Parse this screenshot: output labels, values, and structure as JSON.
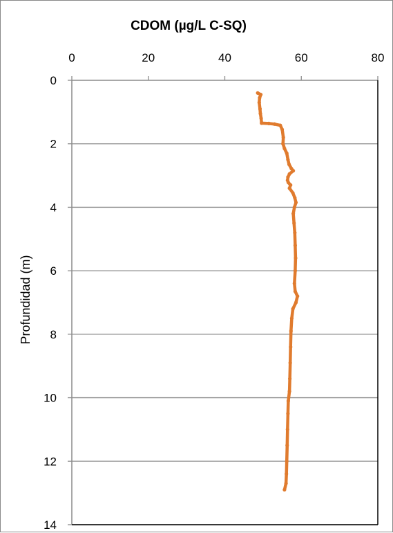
{
  "chart_data": {
    "type": "line",
    "title": "",
    "xlabel": "CDOM (µg/L C-SQ)",
    "ylabel": "Profundidad (m)",
    "xlim": [
      0,
      80
    ],
    "ylim": [
      0,
      14
    ],
    "y_inverted": true,
    "x_axis_position": "top",
    "xticks": [
      0,
      20,
      40,
      60,
      80
    ],
    "yticks": [
      0,
      2,
      4,
      6,
      8,
      10,
      12,
      14
    ],
    "grid": "horizontal",
    "legend": "none",
    "series": [
      {
        "color": "#e07b2e",
        "points": [
          [
            48.6,
            0.4
          ],
          [
            49.4,
            0.45
          ],
          [
            49.1,
            0.55
          ],
          [
            49.0,
            0.7
          ],
          [
            49.2,
            0.9
          ],
          [
            49.3,
            1.05
          ],
          [
            49.5,
            1.2
          ],
          [
            49.6,
            1.35
          ],
          [
            51.5,
            1.36
          ],
          [
            53.0,
            1.38
          ],
          [
            54.5,
            1.42
          ],
          [
            55.0,
            1.55
          ],
          [
            55.3,
            1.8
          ],
          [
            55.2,
            2.0
          ],
          [
            55.6,
            2.15
          ],
          [
            56.2,
            2.3
          ],
          [
            56.5,
            2.5
          ],
          [
            56.8,
            2.65
          ],
          [
            57.4,
            2.78
          ],
          [
            57.9,
            2.85
          ],
          [
            56.9,
            2.95
          ],
          [
            56.5,
            3.05
          ],
          [
            56.4,
            3.15
          ],
          [
            56.6,
            3.22
          ],
          [
            57.2,
            3.3
          ],
          [
            56.9,
            3.4
          ],
          [
            57.8,
            3.55
          ],
          [
            58.3,
            3.7
          ],
          [
            58.6,
            3.85
          ],
          [
            58.2,
            4.0
          ],
          [
            57.9,
            4.2
          ],
          [
            58.1,
            4.5
          ],
          [
            58.3,
            4.8
          ],
          [
            58.4,
            5.2
          ],
          [
            58.5,
            5.6
          ],
          [
            58.4,
            6.0
          ],
          [
            58.2,
            6.4
          ],
          [
            58.4,
            6.65
          ],
          [
            59.0,
            6.8
          ],
          [
            58.6,
            7.0
          ],
          [
            57.8,
            7.2
          ],
          [
            57.5,
            7.5
          ],
          [
            57.3,
            7.9
          ],
          [
            57.2,
            8.4
          ],
          [
            57.1,
            8.9
          ],
          [
            57.0,
            9.4
          ],
          [
            56.9,
            9.8
          ],
          [
            56.6,
            10.1
          ],
          [
            56.5,
            10.5
          ],
          [
            56.4,
            11.0
          ],
          [
            56.3,
            11.5
          ],
          [
            56.2,
            12.0
          ],
          [
            56.1,
            12.4
          ],
          [
            56.0,
            12.7
          ],
          [
            55.6,
            12.9
          ]
        ]
      }
    ]
  }
}
